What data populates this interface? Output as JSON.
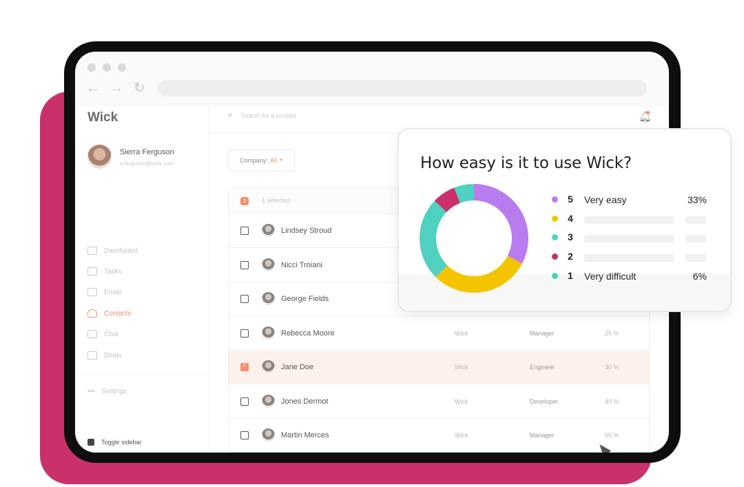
{
  "app": {
    "logo": "Wick"
  },
  "profile": {
    "name": "Sierra Ferguson",
    "email": "s.ferguson@wick.com"
  },
  "sidebar": {
    "items": [
      {
        "label": "Dashboard",
        "icon": "dashboard-icon"
      },
      {
        "label": "Tasks",
        "icon": "tasks-icon"
      },
      {
        "label": "Email",
        "icon": "email-icon"
      },
      {
        "label": "Contacts",
        "icon": "contacts-icon",
        "active": true
      },
      {
        "label": "Chat",
        "icon": "chat-icon"
      },
      {
        "label": "Deals",
        "icon": "deals-icon"
      }
    ],
    "settings": "Settings",
    "toggle": "Toggle sidebar"
  },
  "search": {
    "placeholder": "Search for a contact"
  },
  "filter": {
    "label": "Company:",
    "value": "All"
  },
  "table": {
    "selected_count": "1",
    "selected_label": "1 selected",
    "rows": [
      {
        "name": "Lindsey Stroud",
        "company": "",
        "role": "",
        "percent": ""
      },
      {
        "name": "Nicci Troiani",
        "company": "",
        "role": "",
        "percent": ""
      },
      {
        "name": "George Fields",
        "company": "",
        "role": "",
        "percent": ""
      },
      {
        "name": "Rebecca Moore",
        "company": "Wick",
        "role": "Manager",
        "percent": "25 %"
      },
      {
        "name": "Jane Doe",
        "company": "Wick",
        "role": "Engineer",
        "percent": "30 %",
        "checked": true
      },
      {
        "name": "Jones Dermot",
        "company": "Wick",
        "role": "Developer",
        "percent": "40 %"
      },
      {
        "name": "Martin Merces",
        "company": "Wick",
        "role": "Manager",
        "percent": "60 %"
      }
    ]
  },
  "survey": {
    "title": "How easy is it to use Wick?",
    "options": [
      {
        "rating": "5",
        "label": "Very easy",
        "percent": "33%",
        "color": "#b97cf0"
      },
      {
        "rating": "4",
        "label": "",
        "percent": "",
        "color": "#f5c400"
      },
      {
        "rating": "3",
        "label": "",
        "percent": "",
        "color": "#4fd1c1"
      },
      {
        "rating": "2",
        "label": "",
        "percent": "",
        "color": "#c9306c"
      },
      {
        "rating": "1",
        "label": "Very difficult",
        "percent": "6%",
        "color": "#4fd1c1"
      }
    ]
  },
  "chart_data": {
    "type": "pie",
    "title": "How easy is it to use Wick?",
    "categories": [
      "5",
      "4",
      "3",
      "2",
      "1"
    ],
    "values": [
      33,
      30,
      25,
      7,
      6
    ],
    "colors": [
      "#b97cf0",
      "#f5c400",
      "#4fd1c1",
      "#c9306c",
      "#4fd1c1"
    ]
  },
  "colors": {
    "accent": "#f4906b",
    "brand_back": "#c9306c"
  }
}
